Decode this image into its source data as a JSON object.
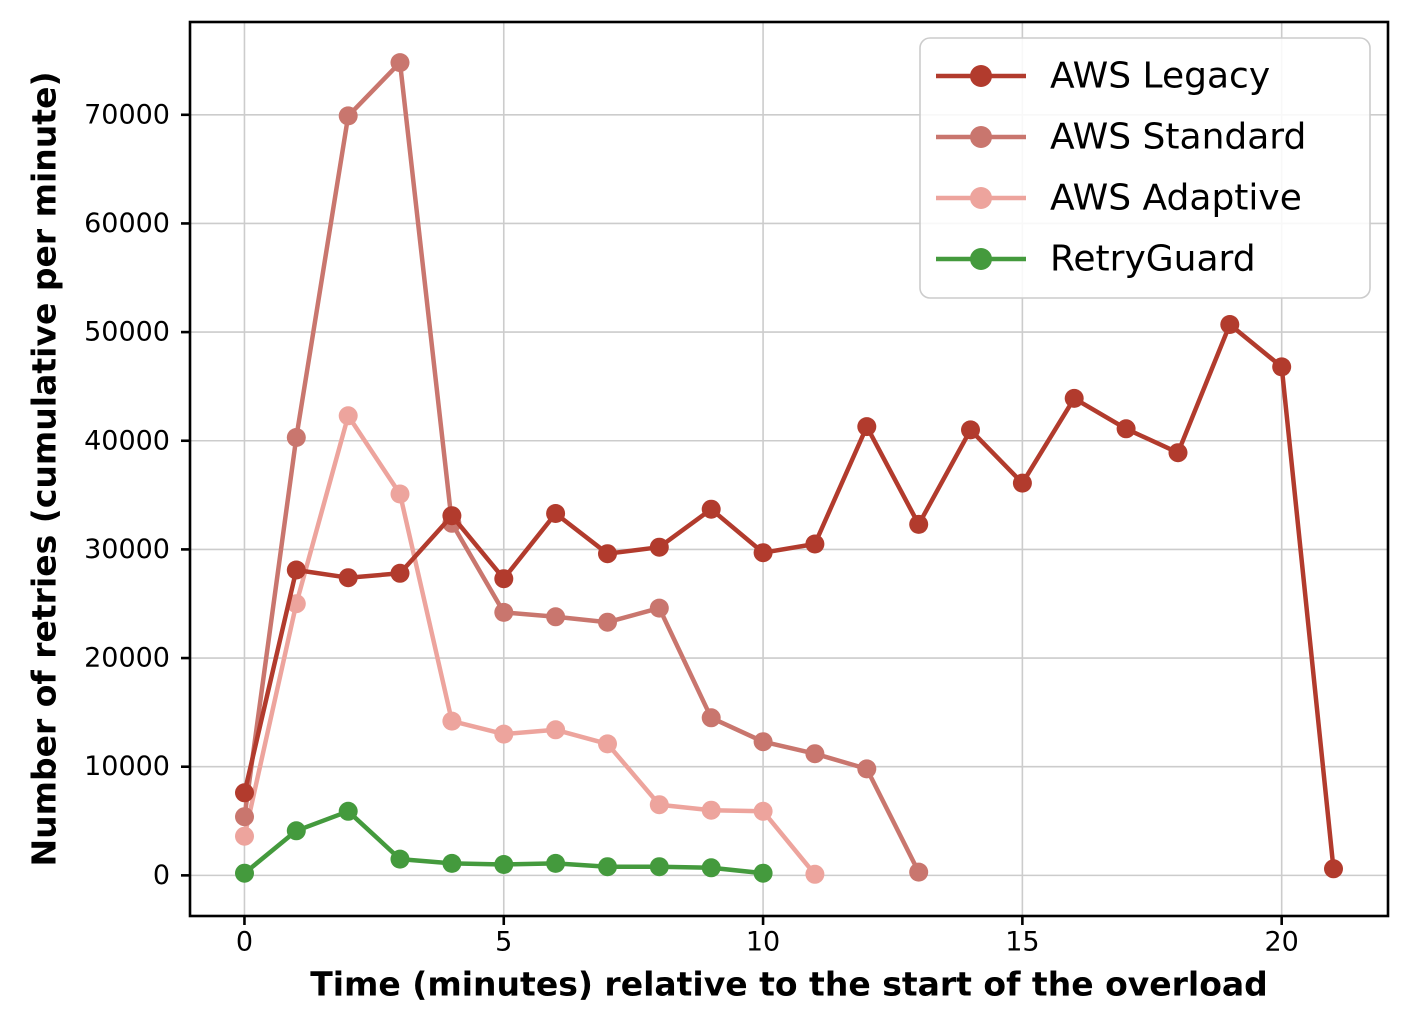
{
  "chart_data": {
    "type": "line",
    "title": "",
    "xlabel": "Time (minutes) relative to the start of the overload",
    "ylabel": "Number of retries (cumulative per minute)",
    "xlim": [
      -1.05,
      22.05
    ],
    "ylim": [
      -3740,
      78540
    ],
    "x_ticks": [
      0,
      5,
      10,
      15,
      20
    ],
    "y_ticks": [
      0,
      10000,
      20000,
      30000,
      40000,
      50000,
      60000,
      70000
    ],
    "grid": true,
    "legend_position": "upper right",
    "series": [
      {
        "name": "AWS Legacy",
        "color": "#b23b2d",
        "x": [
          0,
          1,
          2,
          3,
          4,
          5,
          6,
          7,
          8,
          9,
          10,
          11,
          12,
          13,
          14,
          15,
          16,
          17,
          18,
          19,
          20,
          21
        ],
        "values": [
          7600,
          28100,
          27400,
          27800,
          33100,
          27300,
          33300,
          29600,
          30200,
          33700,
          29700,
          30500,
          41300,
          32300,
          41000,
          36100,
          43900,
          41100,
          38900,
          50700,
          46800,
          600
        ]
      },
      {
        "name": "AWS Standard",
        "color": "#c9766e",
        "x": [
          0,
          1,
          2,
          3,
          4,
          5,
          6,
          7,
          8,
          9,
          10,
          11,
          12,
          13
        ],
        "values": [
          5400,
          40300,
          69900,
          74800,
          32400,
          24200,
          23800,
          23300,
          24600,
          14500,
          12300,
          11200,
          9800,
          300
        ]
      },
      {
        "name": "AWS Adaptive",
        "color": "#eda49d",
        "x": [
          0,
          1,
          2,
          3,
          4,
          5,
          6,
          7,
          8,
          9,
          10,
          11
        ],
        "values": [
          3600,
          25000,
          42300,
          35100,
          14200,
          13000,
          13400,
          12100,
          6500,
          6000,
          5900,
          100
        ]
      },
      {
        "name": "RetryGuard",
        "color": "#449a3d",
        "x": [
          0,
          1,
          2,
          3,
          4,
          5,
          6,
          7,
          8,
          9,
          10
        ],
        "values": [
          200,
          4100,
          5900,
          1500,
          1100,
          1000,
          1100,
          800,
          800,
          700,
          200
        ]
      }
    ]
  },
  "colors": {
    "background": "#ffffff",
    "grid": "#cccccc",
    "spine": "#000000",
    "legend_border": "#cccccc",
    "legend_background": "#ffffff"
  }
}
